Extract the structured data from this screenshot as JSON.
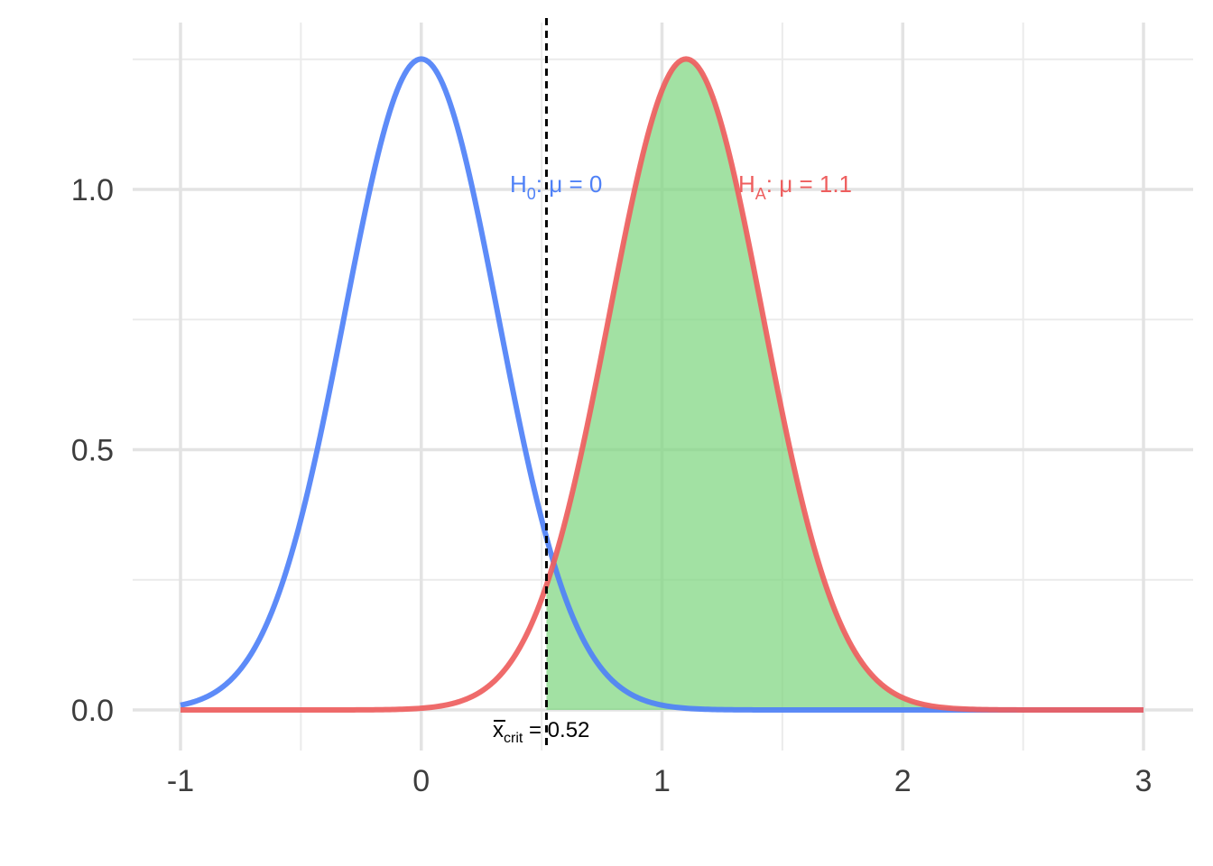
{
  "chart_data": {
    "type": "area",
    "title": "",
    "xlabel": "",
    "ylabel": "",
    "xlim": [
      -1,
      3
    ],
    "ylim": [
      0,
      1.25
    ],
    "x_ticks": [
      -1,
      0,
      1,
      2,
      3
    ],
    "x_tick_labels": [
      "-1",
      "0",
      "1",
      "2",
      "3"
    ],
    "y_ticks": [
      0.0,
      0.5,
      1.0
    ],
    "y_tick_labels": [
      "0.0",
      "0.5",
      "1.0"
    ],
    "grid": true,
    "series": [
      {
        "name": "H0",
        "distribution": "normal",
        "mean": 0,
        "sd": 0.319,
        "color": "#4F81F7"
      },
      {
        "name": "HA",
        "distribution": "normal",
        "mean": 1.1,
        "sd": 0.319,
        "color": "#EE5E5E"
      }
    ],
    "shaded_region": {
      "series": "HA",
      "from": 0.52,
      "to": 3,
      "color": "#7ED67F"
    },
    "critical_line": {
      "x": 0.52,
      "style": "dashed",
      "color": "#000000"
    },
    "annotations": {
      "h0": {
        "main": "H",
        "sub": "0",
        "rest": ":  μ = 0",
        "color": "#4F81F7"
      },
      "ha": {
        "main": "H",
        "sub": "A",
        "rest": ":  μ = 1.1",
        "color": "#EE5E5E"
      },
      "crit": {
        "main": "x",
        "sub": "crit",
        "rest": " = 0.52",
        "color": "#000000"
      }
    }
  }
}
